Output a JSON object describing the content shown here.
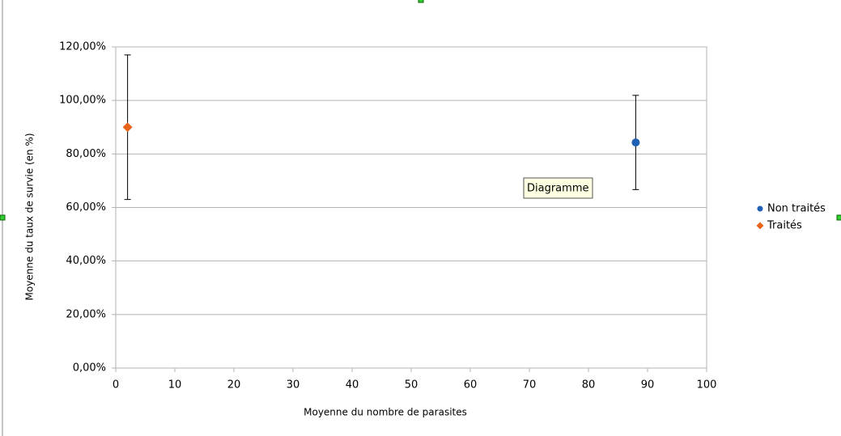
{
  "chart_data": {
    "type": "scatter",
    "x_label": "Moyenne du nombre de parasites",
    "y_label": "Moyenne du taux de survie (en %)",
    "xlim": [
      0,
      100
    ],
    "xticks": [
      0,
      10,
      20,
      30,
      40,
      50,
      60,
      70,
      80,
      90,
      100
    ],
    "ylim": [
      0,
      120
    ],
    "yticks": [
      {
        "value": 0,
        "label": "0,00%"
      },
      {
        "value": 20,
        "label": "20,00%"
      },
      {
        "value": 40,
        "label": "40,00%"
      },
      {
        "value": 60,
        "label": "60,00%"
      },
      {
        "value": 80,
        "label": "80,00%"
      },
      {
        "value": 100,
        "label": "100,00%"
      },
      {
        "value": 120,
        "label": "120,00%"
      }
    ],
    "grid": true,
    "legend": "right",
    "series": [
      {
        "name": "Non traités",
        "color": "#1f5fb4",
        "marker": "circle",
        "x": [
          88
        ],
        "values": [
          84.3
        ],
        "errors": [
          17.6
        ]
      },
      {
        "name": "Traités",
        "color": "#e8641b",
        "marker": "diamond",
        "x": [
          2
        ],
        "values": [
          90
        ],
        "errors": [
          27
        ]
      }
    ],
    "tooltip": "Diagramme"
  }
}
